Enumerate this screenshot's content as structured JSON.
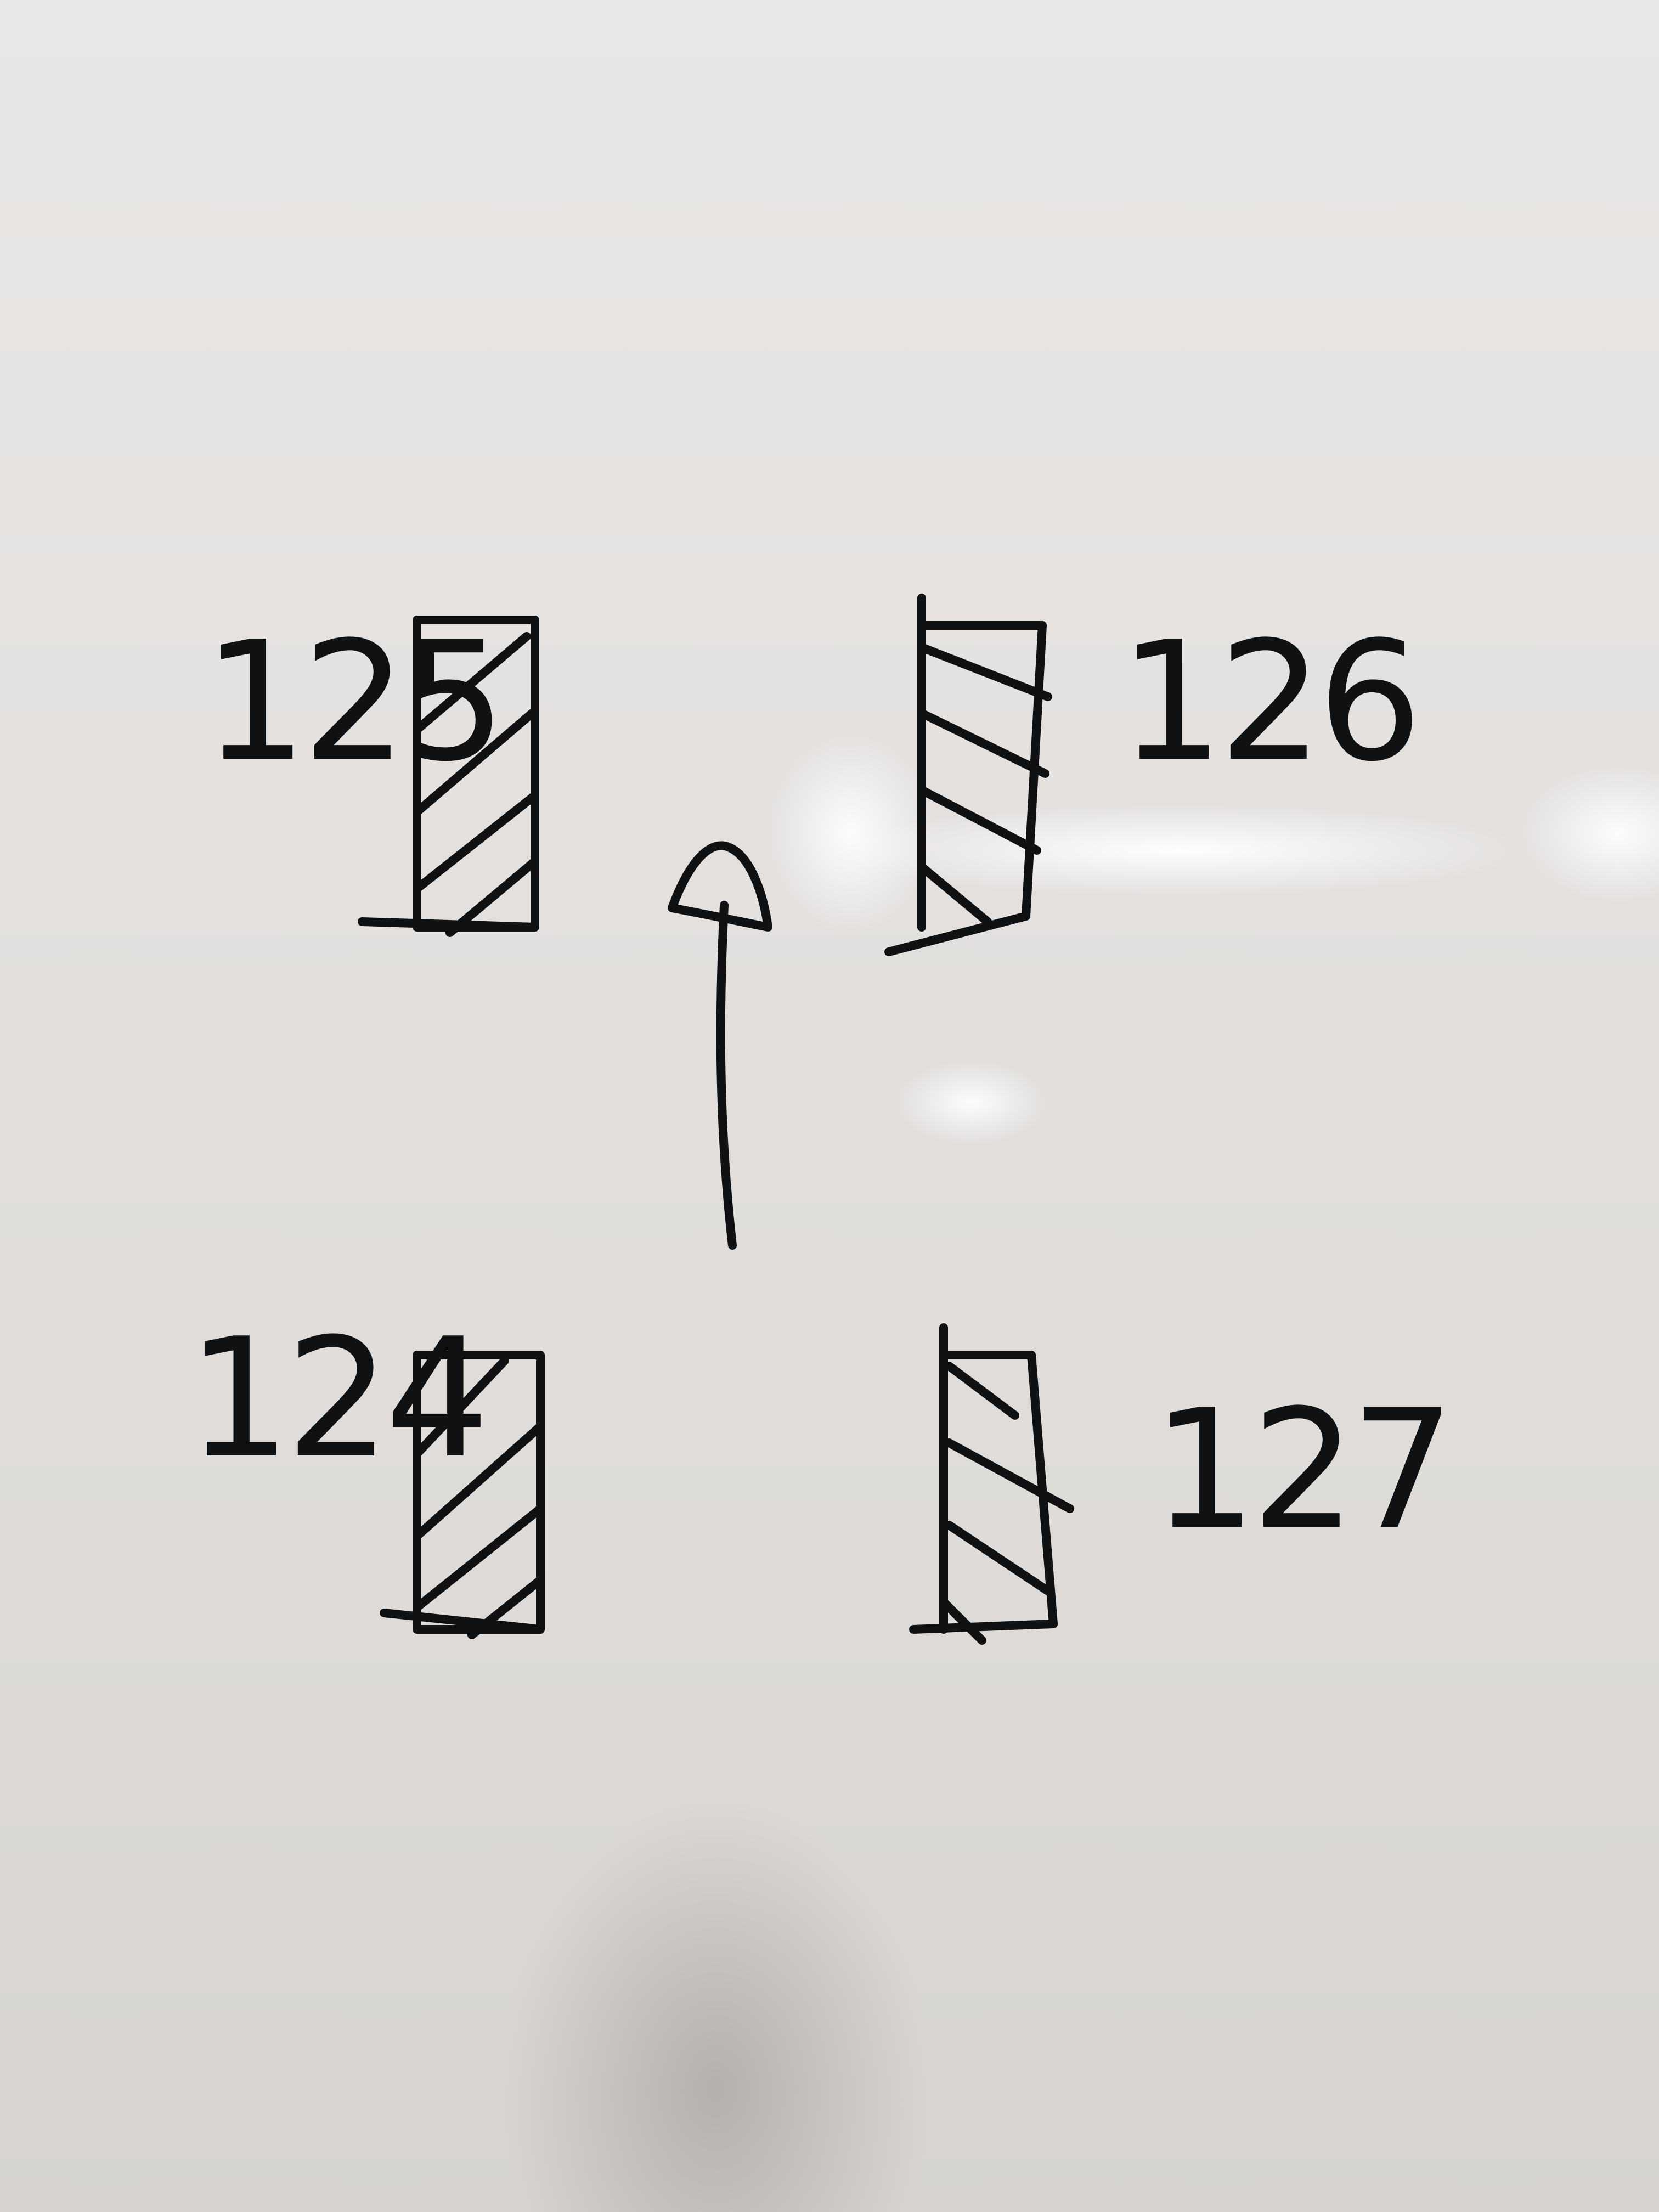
{
  "labels": {
    "top_left": "125",
    "top_right": "126",
    "bottom_left": "124",
    "bottom_right": "127"
  },
  "colors": {
    "ink": "#111111",
    "board": "#e3e0de"
  },
  "icons": {
    "arrow": "up-arrow-icon"
  }
}
